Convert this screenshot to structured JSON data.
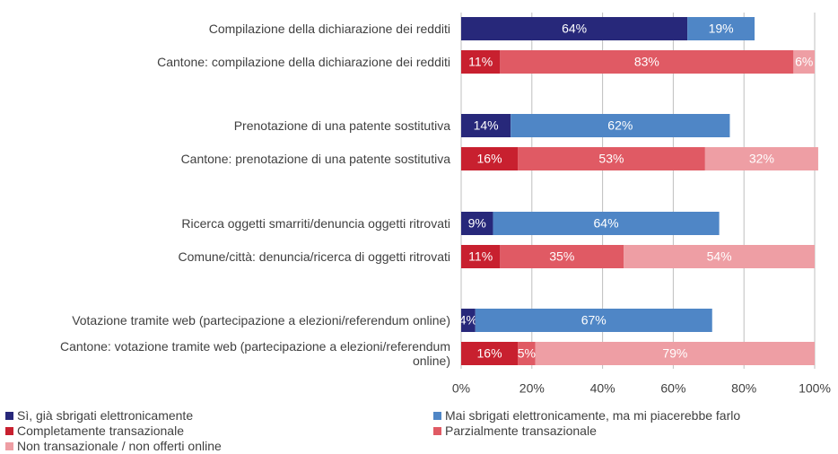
{
  "chart_data": {
    "type": "stacked-barh",
    "categories": [
      "Compilazione della dichiarazione dei redditi",
      "Cantone: compilazione della dichiarazione dei redditi",
      "Prenotazione di una patente sostitutiva",
      "Cantone: prenotazione di una patente sostitutiva",
      "Ricerca oggetti smarriti/denuncia oggetti ritrovati",
      "Comune/città: denuncia/ricerca di oggetti ritrovati",
      "Votazione tramite web (partecipazione a elezioni/referendum online)",
      "Cantone: votazione tramite web (partecipazione a elezioni/referendum online)"
    ],
    "series": [
      {
        "name": "Sì, già sbrigati elettronicamente",
        "color": "#27287a",
        "values": [
          64,
          null,
          14,
          null,
          9,
          null,
          4,
          null
        ],
        "value_labels": [
          "64%",
          null,
          "14%",
          null,
          "9%",
          null,
          "4%",
          null
        ]
      },
      {
        "name": "Mai sbrigati elettronicamente, ma mi piacerebbe farlo",
        "color": "#4f86c6",
        "values": [
          19,
          null,
          62,
          null,
          64,
          null,
          67,
          null
        ],
        "value_labels": [
          "19%",
          null,
          "62%",
          null,
          "64%",
          null,
          "67%",
          null
        ]
      },
      {
        "name": "Completamente transazionale",
        "color": "#c8202f",
        "values": [
          null,
          11,
          null,
          16,
          null,
          11,
          null,
          16
        ],
        "value_labels": [
          null,
          "11%",
          null,
          "16%",
          null,
          "11%",
          null,
          "16%"
        ]
      },
      {
        "name": "Parzialmente transazionale",
        "color": "#e05a64",
        "values": [
          null,
          83,
          null,
          53,
          null,
          35,
          null,
          5
        ],
        "value_labels": [
          null,
          "83%",
          null,
          "53%",
          null,
          "35%",
          null,
          "5%"
        ]
      },
      {
        "name": "Non transazionale / non offerti online",
        "color": "#ee9ea4",
        "values": [
          null,
          6,
          null,
          32,
          null,
          54,
          null,
          79
        ],
        "value_labels": [
          null,
          "6%",
          null,
          "32%",
          null,
          "54%",
          null,
          "79%"
        ]
      }
    ],
    "xlim": [
      0,
      100
    ],
    "xticks": [
      {
        "value": 0,
        "label": "0%"
      },
      {
        "value": 20,
        "label": "20%"
      },
      {
        "value": 40,
        "label": "40%"
      },
      {
        "value": 60,
        "label": "60%"
      },
      {
        "value": 80,
        "label": "80%"
      },
      {
        "value": 100,
        "label": "100%"
      }
    ],
    "grid": true,
    "legend": "bottom"
  }
}
